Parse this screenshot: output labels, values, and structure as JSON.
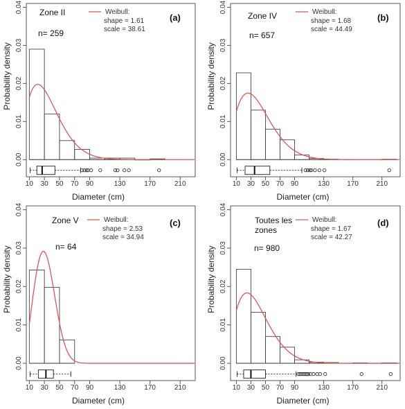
{
  "chart_data": [
    {
      "type": "histogram",
      "panel_label": "(a)",
      "zone_lines": [
        "Zone II"
      ],
      "n_label": "n= 259",
      "legend": {
        "title": "Weibull:",
        "line1": "shape =  1.61",
        "line2": "scale =  38.61",
        "color": "#e05555"
      },
      "xlabel": "Diameter (cm)",
      "ylabel": "Probability  density",
      "xticks": [
        10,
        30,
        50,
        70,
        90,
        130,
        170,
        210
      ],
      "yticks": [
        "0.00",
        "0.01",
        "0.02",
        "0.03",
        "0.04"
      ],
      "xlim": [
        6,
        230
      ],
      "ylim": [
        -0.0045,
        0.041
      ],
      "bars": [
        {
          "x0": 10,
          "x1": 30,
          "y": 0.029
        },
        {
          "x0": 30,
          "x1": 50,
          "y": 0.012
        },
        {
          "x0": 50,
          "x1": 70,
          "y": 0.005
        },
        {
          "x0": 70,
          "x1": 90,
          "y": 0.0027
        },
        {
          "x0": 90,
          "x1": 110,
          "y": 0.0004
        },
        {
          "x0": 110,
          "x1": 130,
          "y": 0.0004
        },
        {
          "x0": 130,
          "x1": 150,
          "y": 0.0004
        },
        {
          "x0": 150,
          "x1": 170,
          "y": 0.0
        },
        {
          "x0": 170,
          "x1": 190,
          "y": 0.0002
        }
      ],
      "weibull": {
        "shape": 1.61,
        "scale": 38.61,
        "x_start": 10
      },
      "boxplot": {
        "whisker_low": 11,
        "q1": 20,
        "median": 27,
        "q3": 44,
        "whisker_high": 78,
        "outliers": [
          80,
          83,
          86,
          88,
          92,
          104,
          124,
          127,
          136,
          142,
          182
        ]
      }
    },
    {
      "type": "histogram",
      "panel_label": "(b)",
      "zone_lines": [
        "Zone IV"
      ],
      "n_label": "n= 657",
      "legend": {
        "title": "Weibull:",
        "line1": "shape =  1.68",
        "line2": "scale =  44.49",
        "color": "#e05555"
      },
      "xlabel": "Diameter (cm)",
      "ylabel": "Probability  density",
      "xticks": [
        10,
        30,
        50,
        70,
        90,
        130,
        170,
        210
      ],
      "yticks": [
        "0.00",
        "0.01",
        "0.02",
        "0.03",
        "0.04"
      ],
      "xlim": [
        2,
        235
      ],
      "ylim": [
        -0.0045,
        0.041
      ],
      "bars": [
        {
          "x0": 10,
          "x1": 30,
          "y": 0.0228
        },
        {
          "x0": 30,
          "x1": 50,
          "y": 0.013
        },
        {
          "x0": 50,
          "x1": 70,
          "y": 0.008
        },
        {
          "x0": 70,
          "x1": 90,
          "y": 0.0052
        },
        {
          "x0": 90,
          "x1": 110,
          "y": 0.0012
        },
        {
          "x0": 110,
          "x1": 130,
          "y": 0.0003
        },
        {
          "x0": 130,
          "x1": 150,
          "y": 0.0001
        },
        {
          "x0": 210,
          "x1": 230,
          "y": 0.0001
        }
      ],
      "weibull": {
        "shape": 1.68,
        "scale": 44.49,
        "x_start": 10
      },
      "boxplot": {
        "whisker_low": 11,
        "q1": 22,
        "median": 35,
        "q3": 56,
        "whisker_high": 100,
        "outliers": [
          105,
          108,
          111,
          113,
          118,
          124,
          131,
          220
        ]
      }
    },
    {
      "type": "histogram",
      "panel_label": "(c)",
      "zone_lines": [
        "Zone V"
      ],
      "n_label": "n= 64",
      "legend": {
        "title": "Weibull:",
        "line1": "shape =  2.53",
        "line2": "scale =  34.94",
        "color": "#e05555"
      },
      "xlabel": "Diameter (cm)",
      "ylabel": "Probability  density",
      "xticks": [
        10,
        30,
        50,
        70,
        90,
        130,
        170,
        210
      ],
      "yticks": [
        "0.00",
        "0.01",
        "0.02",
        "0.03",
        "0.04"
      ],
      "xlim": [
        6,
        230
      ],
      "ylim": [
        -0.0045,
        0.041
      ],
      "bars": [
        {
          "x0": 10,
          "x1": 30,
          "y": 0.0243
        },
        {
          "x0": 30,
          "x1": 50,
          "y": 0.0198
        },
        {
          "x0": 50,
          "x1": 70,
          "y": 0.0061
        }
      ],
      "weibull": {
        "shape": 2.53,
        "scale": 34.94,
        "x_start": 10
      },
      "boxplot": {
        "whisker_low": 11,
        "q1": 22,
        "median": 32,
        "q3": 42,
        "whisker_high": 65,
        "outliers": []
      }
    },
    {
      "type": "histogram",
      "panel_label": "(d)",
      "zone_lines": [
        "Toutes les",
        "zones"
      ],
      "n_label": "n= 980",
      "legend": {
        "title": "Weibull:",
        "line1": "shape =  1.67",
        "line2": "scale =  42.27",
        "color": "#e05555"
      },
      "xlabel": "Diameter (cm)",
      "ylabel": "Probability  density",
      "xticks": [
        10,
        30,
        50,
        70,
        90,
        130,
        170,
        210
      ],
      "yticks": [
        "0.00",
        "0.01",
        "0.02",
        "0.03",
        "0.04"
      ],
      "xlim": [
        2,
        235
      ],
      "ylim": [
        -0.0045,
        0.041
      ],
      "bars": [
        {
          "x0": 10,
          "x1": 30,
          "y": 0.0245
        },
        {
          "x0": 30,
          "x1": 50,
          "y": 0.0133
        },
        {
          "x0": 50,
          "x1": 70,
          "y": 0.007
        },
        {
          "x0": 70,
          "x1": 90,
          "y": 0.0042
        },
        {
          "x0": 90,
          "x1": 110,
          "y": 0.0009
        },
        {
          "x0": 110,
          "x1": 130,
          "y": 0.0003
        },
        {
          "x0": 130,
          "x1": 150,
          "y": 0.0002
        },
        {
          "x0": 170,
          "x1": 190,
          "y": 0.0001
        },
        {
          "x0": 210,
          "x1": 230,
          "y": 0.0001
        }
      ],
      "weibull": {
        "shape": 1.67,
        "scale": 42.27,
        "x_start": 10
      },
      "boxplot": {
        "whisker_low": 11,
        "q1": 20,
        "median": 30,
        "q3": 50,
        "whisker_high": 92,
        "outliers": [
          95,
          97,
          99,
          101,
          103,
          105,
          107,
          109,
          112,
          116,
          121,
          125,
          132,
          182,
          222
        ]
      }
    }
  ]
}
